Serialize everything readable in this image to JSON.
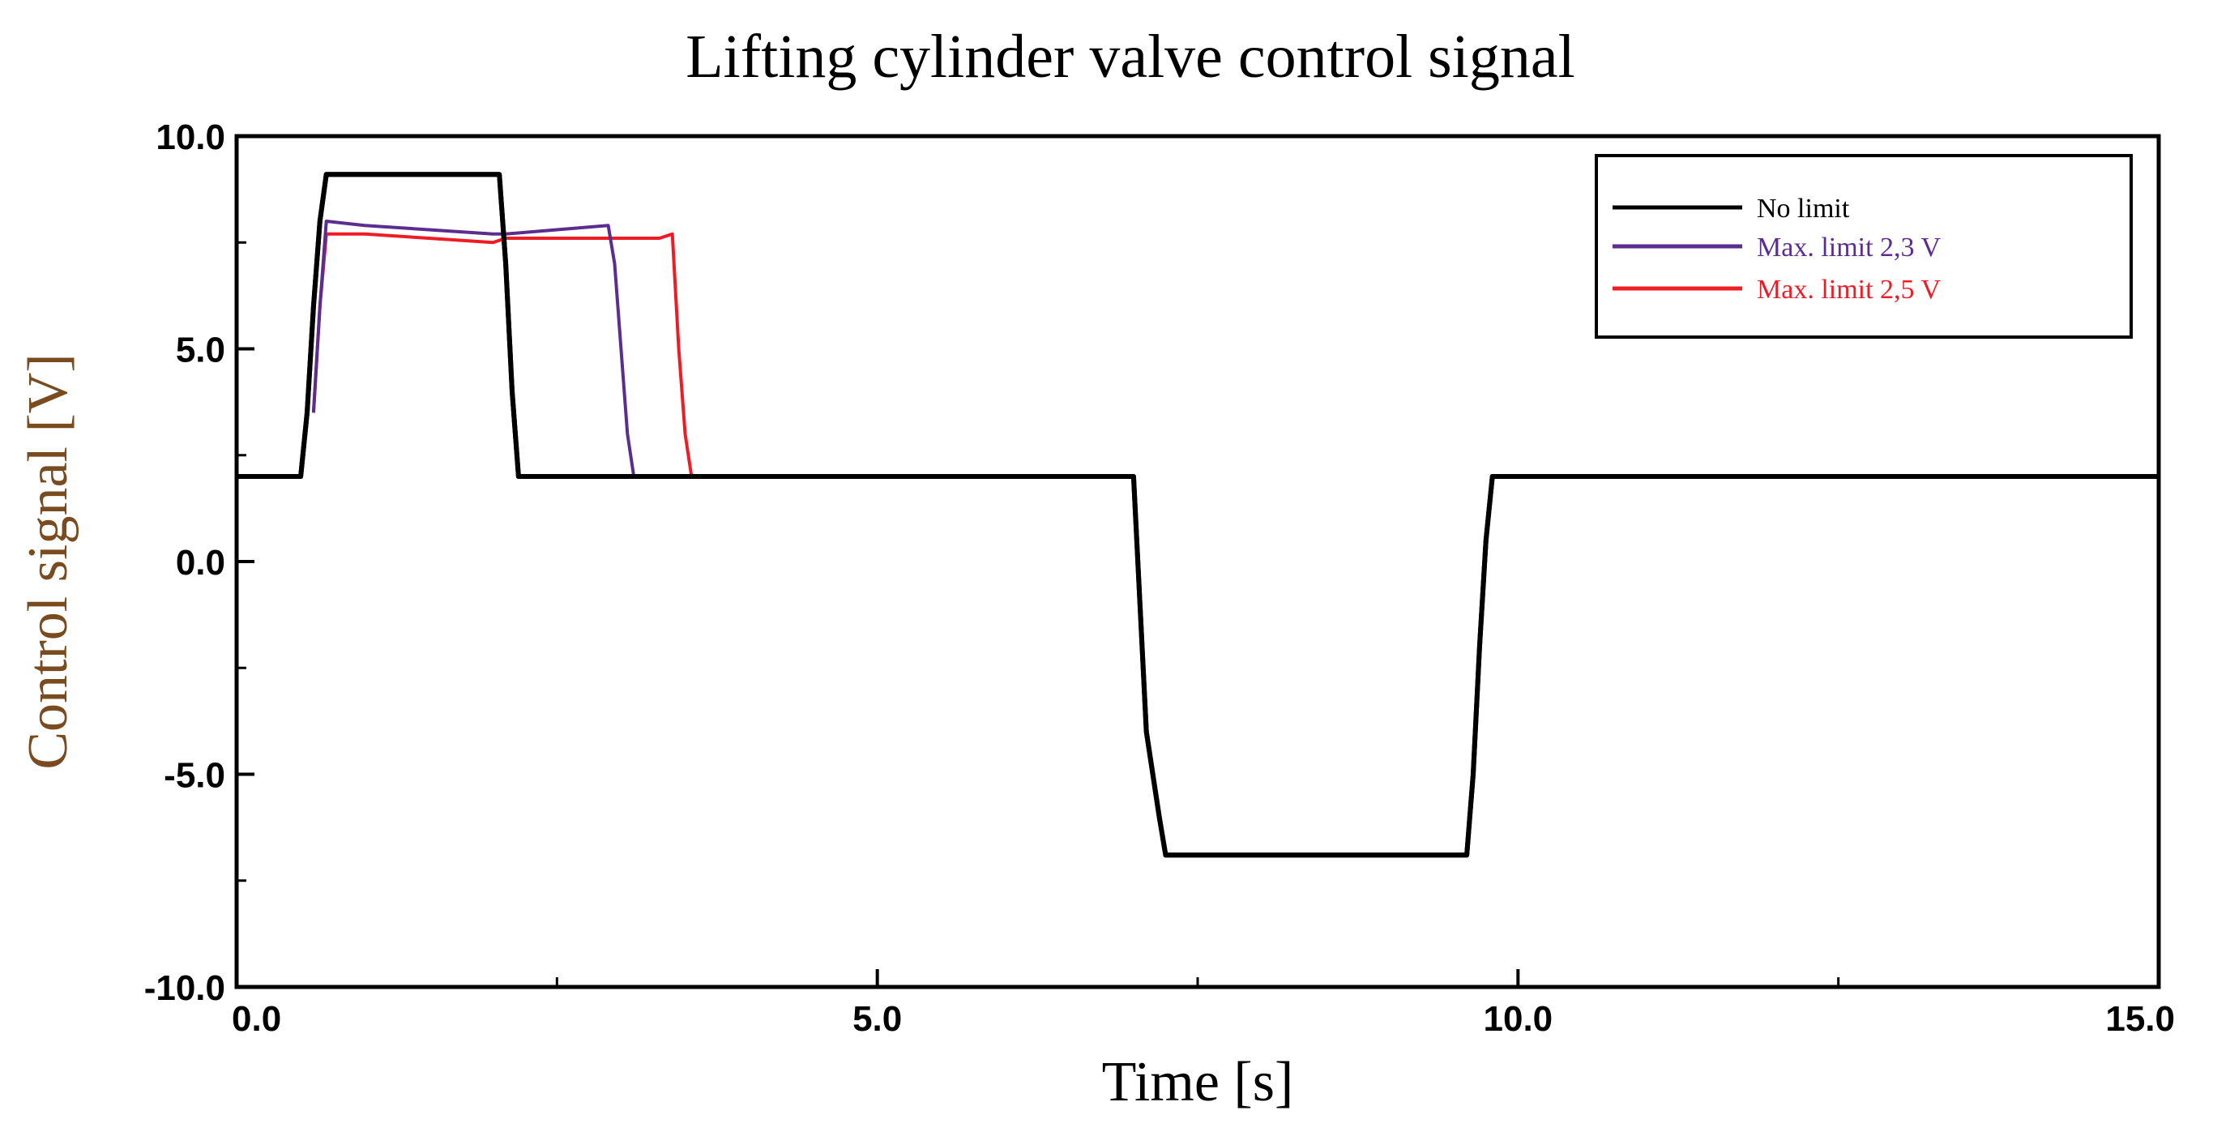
{
  "colors": {
    "no_limit": "#000000",
    "max_23": "#5b2d8e",
    "max_25": "#ee1c25",
    "ylabel": "#7a4b1e"
  },
  "chart_data": {
    "type": "line",
    "title": "Lifting cylinder valve control signal",
    "xlabel": "Time [s]",
    "ylabel": "Control signal [V]",
    "xlim": [
      0,
      15
    ],
    "ylim": [
      -10,
      10
    ],
    "xticks": [
      0,
      5,
      10,
      15
    ],
    "xtick_labels": [
      "0.0",
      "5.0",
      "10.0",
      "15.0"
    ],
    "yticks": [
      10,
      5,
      0,
      -5,
      -10
    ],
    "ytick_labels": [
      "10.0",
      "5.0",
      "0.0",
      "-5.0",
      "-10.0"
    ],
    "grid": false,
    "legend_position": "top-right",
    "series": [
      {
        "name": "No limit",
        "color_key": "no_limit",
        "x": [
          0,
          0.5,
          0.55,
          0.6,
          0.65,
          0.7,
          2.05,
          2.1,
          2.15,
          2.2,
          7.0,
          7.05,
          7.1,
          7.2,
          7.25,
          9.6,
          9.65,
          9.7,
          9.75,
          9.8,
          15.0
        ],
        "y": [
          2.0,
          2.0,
          3.5,
          6.0,
          8.0,
          9.1,
          9.1,
          7.0,
          4.0,
          2.0,
          2.0,
          -1.0,
          -4.0,
          -6.0,
          -6.9,
          -6.9,
          -5.0,
          -2.0,
          0.5,
          2.0,
          2.0
        ]
      },
      {
        "name": "Max. limit 2,3 V",
        "color_key": "max_23",
        "x": [
          0.6,
          0.65,
          0.7,
          1.0,
          1.5,
          2.0,
          2.1,
          2.5,
          2.9,
          2.95,
          3.0,
          3.05,
          3.1
        ],
        "y": [
          3.5,
          6.0,
          8.0,
          7.9,
          7.8,
          7.7,
          7.7,
          7.8,
          7.9,
          7.0,
          5.0,
          3.0,
          2.0
        ]
      },
      {
        "name": "Max. limit 2,5 V",
        "color_key": "max_25",
        "x": [
          0.6,
          0.65,
          0.7,
          1.0,
          1.5,
          2.0,
          2.1,
          2.6,
          3.0,
          3.3,
          3.4,
          3.45,
          3.5,
          3.55
        ],
        "y": [
          3.5,
          6.0,
          7.7,
          7.7,
          7.6,
          7.5,
          7.6,
          7.6,
          7.6,
          7.6,
          7.7,
          5.0,
          3.0,
          2.0
        ]
      }
    ]
  }
}
